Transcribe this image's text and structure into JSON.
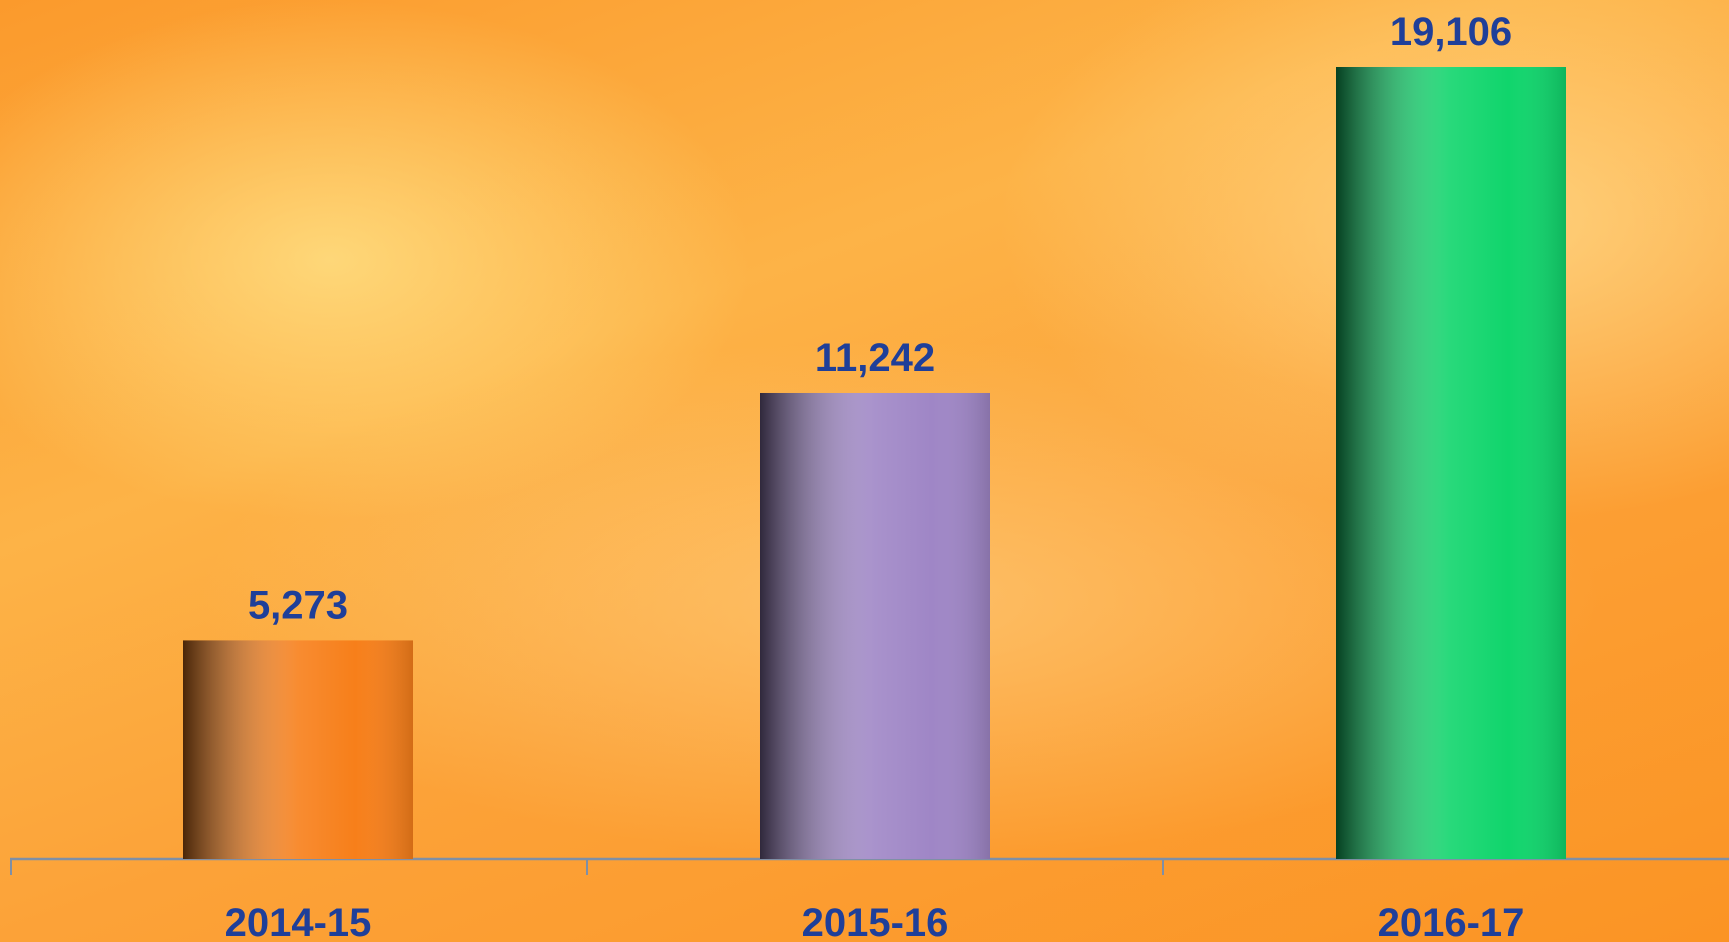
{
  "chart_data": {
    "type": "bar",
    "categories": [
      "2014-15",
      "2015-16",
      "2016-17"
    ],
    "values": [
      5273,
      11242,
      19106
    ],
    "value_labels": [
      "5,273",
      "11,242",
      "19,106"
    ],
    "colors": [
      "#f77f1a",
      "#9f86c6",
      "#10d56c"
    ]
  }
}
